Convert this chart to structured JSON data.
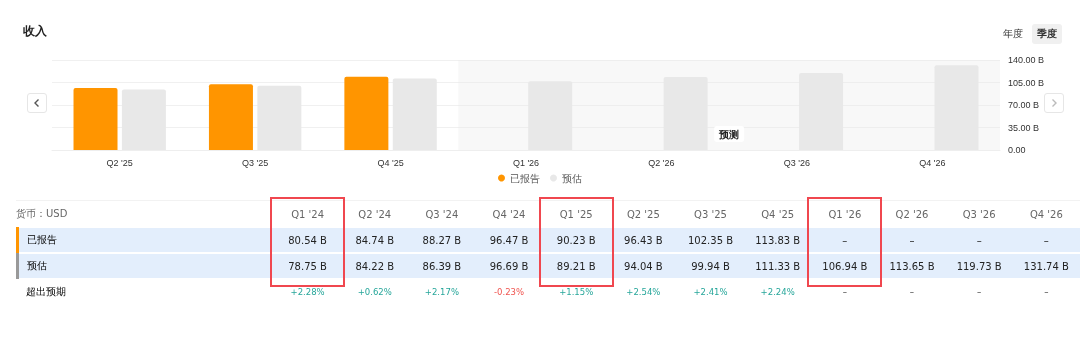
{
  "chart_data": [
    {
      "type": "bar",
      "title": "收入",
      "categories": [
        "Q2 '25",
        "Q3 '25",
        "Q4 '25",
        "Q1 '26",
        "Q2 '26",
        "Q3 '26",
        "Q4 '26"
      ],
      "series": [
        {
          "name": "已报告",
          "color": "#ff9500",
          "values": [
            96.43,
            102.35,
            113.83,
            null,
            null,
            null,
            null
          ]
        },
        {
          "name": "预估",
          "color": "#e8e8e8",
          "values": [
            94.04,
            99.94,
            111.33,
            106.94,
            113.65,
            119.73,
            131.74
          ]
        }
      ],
      "ylim": [
        0,
        140
      ],
      "yticks": [
        {
          "value": 0,
          "label": "0.00"
        },
        {
          "value": 35,
          "label": "35.00 B"
        },
        {
          "value": 70,
          "label": "70.00 B"
        },
        {
          "value": 105,
          "label": "105.00 B"
        },
        {
          "value": 140,
          "label": "140.00 B"
        }
      ],
      "grid": "y",
      "legend": "bottom",
      "bands": [
        {
          "axis": "x",
          "from": "Q1 '26",
          "to": "Q4 '26",
          "label": "预测"
        }
      ],
      "annotations": [
        "年度",
        "季度"
      ]
    },
    {
      "type": "other",
      "annotations": [
        "货币：USD"
      ],
      "categories": [
        "Q1 '24",
        "Q2 '24",
        "Q3 '24",
        "Q4 '24",
        "Q1 '25",
        "Q2 '25",
        "Q3 '25",
        "Q4 '25",
        "Q1 '26",
        "Q2 '26",
        "Q3 '26",
        "Q4 '26"
      ],
      "series": [
        {
          "name": "已报告",
          "values": [
            80.54,
            84.74,
            88.27,
            96.47,
            90.23,
            96.43,
            102.35,
            113.83,
            null,
            null,
            null,
            null
          ],
          "value_labels": [
            "80.54 B",
            "84.74 B",
            "88.27 B",
            "96.47 B",
            "90.23 B",
            "96.43 B",
            "102.35 B",
            "113.83 B",
            "–",
            "–",
            "–",
            "–"
          ]
        },
        {
          "name": "预估",
          "values": [
            78.75,
            84.22,
            86.39,
            96.69,
            89.21,
            94.04,
            99.94,
            111.33,
            106.94,
            113.65,
            119.73,
            131.74
          ],
          "value_labels": [
            "78.75 B",
            "84.22 B",
            "86.39 B",
            "96.69 B",
            "89.21 B",
            "94.04 B",
            "99.94 B",
            "111.33 B",
            "106.94 B",
            "113.65 B",
            "119.73 B",
            "131.74 B"
          ]
        },
        {
          "name": "超出预期",
          "values": [
            2.28,
            0.62,
            2.17,
            -0.23,
            1.15,
            2.54,
            2.41,
            2.24,
            null,
            null,
            null,
            null
          ],
          "value_labels": [
            "+2.28%",
            "+0.62%",
            "+2.17%",
            "-0.23%",
            "+1.15%",
            "+2.54%",
            "+2.41%",
            "+2.24%",
            "–",
            "–",
            "–",
            "–"
          ]
        }
      ]
    }
  ]
}
